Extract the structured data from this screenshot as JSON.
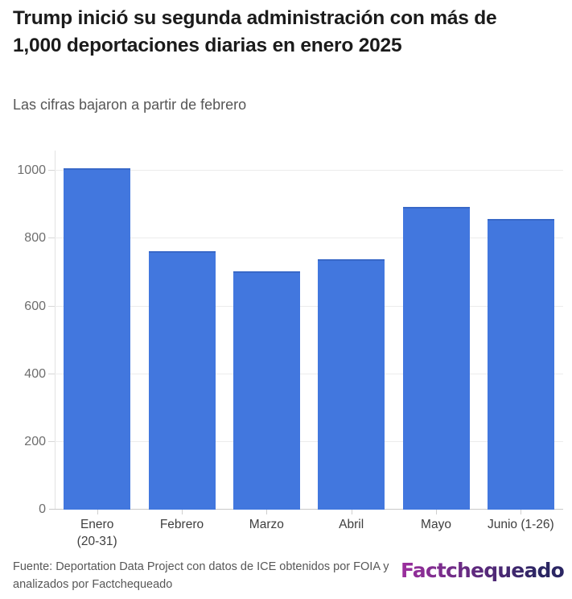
{
  "header": {
    "title": "Trump inició su segunda administración con más de 1,000 deportaciones diarias en enero 2025",
    "subtitle": "Las cifras bajaron a partir de febrero"
  },
  "chart_data": {
    "type": "bar",
    "title": "Trump inició su segunda administración con más de 1,000 deportaciones diarias en enero 2025",
    "subtitle": "Las cifras bajaron a partir de febrero",
    "categories": [
      "Enero (20-31)",
      "Febrero",
      "Marzo",
      "Abril",
      "Mayo",
      "Junio (1-26)"
    ],
    "category_labels": [
      "Enero\n(20-31)",
      "Febrero",
      "Marzo",
      "Abril",
      "Mayo",
      "Junio (1-26)"
    ],
    "values": [
      1007,
      763,
      703,
      740,
      894,
      857
    ],
    "xlabel": "",
    "ylabel": "",
    "yticks": [
      0,
      200,
      400,
      600,
      800,
      1000
    ],
    "ylim": [
      0,
      1060
    ],
    "grid": true,
    "legend": false,
    "bar_color": "#4277de",
    "bar_top_border": "#3868c8"
  },
  "footer": {
    "source": "Fuente: Deportation Data Project con datos de ICE obtenidos por FOIA y analizados por Factchequeado",
    "logo_text": "Factchequeado",
    "logo_gradient": [
      "#9c2f9e",
      "#2b2663"
    ]
  }
}
